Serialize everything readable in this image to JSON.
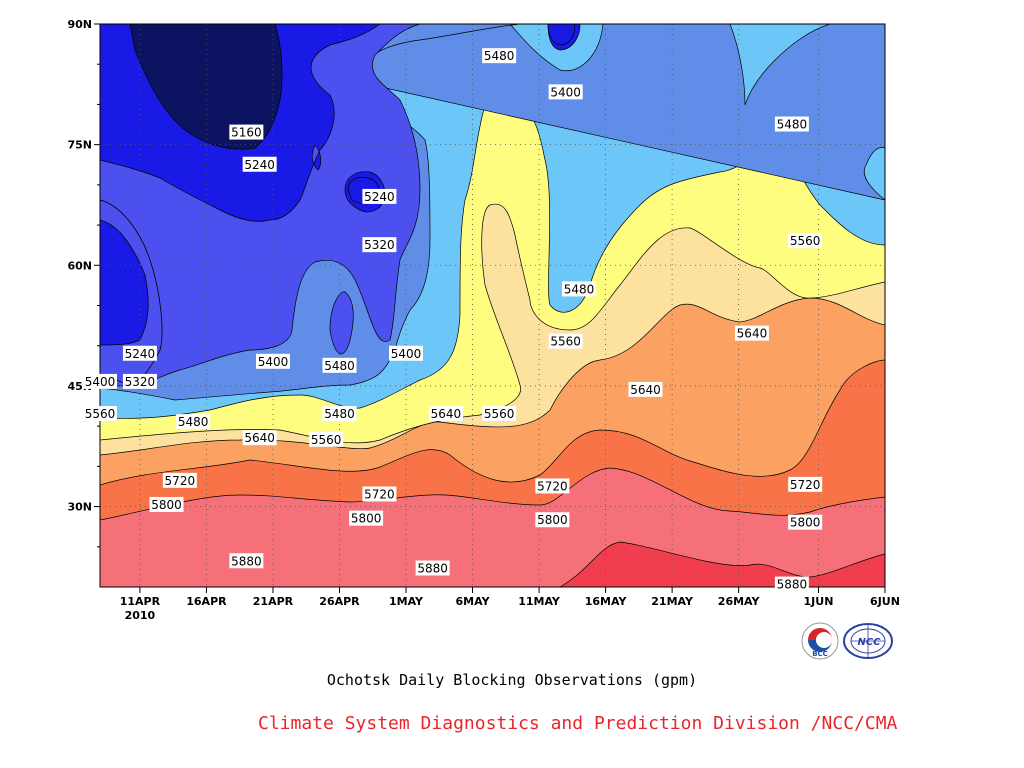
{
  "chart_data": {
    "type": "heatmap",
    "subtype": "filled-contour",
    "title": "Ochotsk Daily Blocking Observations (gpm)",
    "credit": "Climate System Diagnostics and Prediction Division /NCC/CMA",
    "x_ticks": [
      "11APR",
      "16APR",
      "21APR",
      "26APR",
      "1MAY",
      "6MAY",
      "11MAY",
      "16MAY",
      "21MAY",
      "26MAY",
      "1JUN",
      "6JUN"
    ],
    "x_year_label": "2010",
    "x_range": [
      "2010-04-08",
      "2010-06-06"
    ],
    "y_ticks": [
      "30N",
      "45N",
      "60N",
      "75N",
      "90N"
    ],
    "y_range": [
      20,
      90
    ],
    "levels": [
      5160,
      5240,
      5320,
      5400,
      5480,
      5560,
      5640,
      5720,
      5800,
      5880
    ],
    "fill_colors": [
      "#0c1462",
      "#1a1ae6",
      "#4b50ee",
      "#5f8de8",
      "#6dc6f8",
      "#fffd80",
      "#fde19f",
      "#fba262",
      "#f97348",
      "#f57078",
      "#f03e4e"
    ],
    "contour_labels": [
      {
        "text": "5160",
        "date": "2010-04-19",
        "lat": 76.5
      },
      {
        "text": "5240",
        "date": "2010-04-20",
        "lat": 72.5
      },
      {
        "text": "5240",
        "date": "2010-04-29",
        "lat": 68.5
      },
      {
        "text": "5320",
        "date": "2010-04-29",
        "lat": 62.5
      },
      {
        "text": "5480",
        "date": "2010-05-08",
        "lat": 86
      },
      {
        "text": "5400",
        "date": "2010-05-13",
        "lat": 81.5
      },
      {
        "text": "5480",
        "date": "2010-05-30",
        "lat": 77.5
      },
      {
        "text": "5560",
        "date": "2010-05-31",
        "lat": 63
      },
      {
        "text": "5480",
        "date": "2010-05-14",
        "lat": 57
      },
      {
        "text": "5640",
        "date": "2010-05-27",
        "lat": 51.5
      },
      {
        "text": "5560",
        "date": "2010-05-13",
        "lat": 50.5
      },
      {
        "text": "5240",
        "date": "2010-04-11",
        "lat": 49
      },
      {
        "text": "5400",
        "date": "2010-04-21",
        "lat": 48
      },
      {
        "text": "5480",
        "date": "2010-04-26",
        "lat": 47.5
      },
      {
        "text": "5400",
        "date": "2010-05-01",
        "lat": 49
      },
      {
        "text": "5400",
        "date": "2010-04-08",
        "lat": 45.5
      },
      {
        "text": "5320",
        "date": "2010-04-11",
        "lat": 45.5
      },
      {
        "text": "5640",
        "date": "2010-05-19",
        "lat": 44.5
      },
      {
        "text": "5560",
        "date": "2010-04-08",
        "lat": 41.5
      },
      {
        "text": "5480",
        "date": "2010-04-15",
        "lat": 40.5
      },
      {
        "text": "5480",
        "date": "2010-04-26",
        "lat": 41.5
      },
      {
        "text": "5640",
        "date": "2010-05-04",
        "lat": 41.5
      },
      {
        "text": "5560",
        "date": "2010-05-08",
        "lat": 41.5
      },
      {
        "text": "5640",
        "date": "2010-04-20",
        "lat": 38.5
      },
      {
        "text": "5560",
        "date": "2010-04-25",
        "lat": 38.3
      },
      {
        "text": "5720",
        "date": "2010-04-14",
        "lat": 33.2
      },
      {
        "text": "5720",
        "date": "2010-04-29",
        "lat": 31.5
      },
      {
        "text": "5720",
        "date": "2010-05-12",
        "lat": 32.5
      },
      {
        "text": "5720",
        "date": "2010-05-31",
        "lat": 32.7
      },
      {
        "text": "5800",
        "date": "2010-04-13",
        "lat": 30.2
      },
      {
        "text": "5800",
        "date": "2010-04-28",
        "lat": 28.5
      },
      {
        "text": "5800",
        "date": "2010-05-12",
        "lat": 28.3
      },
      {
        "text": "5800",
        "date": "2010-05-31",
        "lat": 28
      },
      {
        "text": "5880",
        "date": "2010-04-19",
        "lat": 23.2
      },
      {
        "text": "5880",
        "date": "2010-05-03",
        "lat": 22.3
      },
      {
        "text": "5880",
        "date": "2010-05-30",
        "lat": 20.3
      }
    ],
    "grid": true,
    "grid_style": "dotted"
  },
  "logos": {
    "left": {
      "name": "bcc-logo",
      "text": "BCC"
    },
    "right": {
      "name": "ncc-logo",
      "text": "NCC"
    }
  },
  "colors": {
    "credit": "#e8262d",
    "contour_line": "#000000"
  }
}
